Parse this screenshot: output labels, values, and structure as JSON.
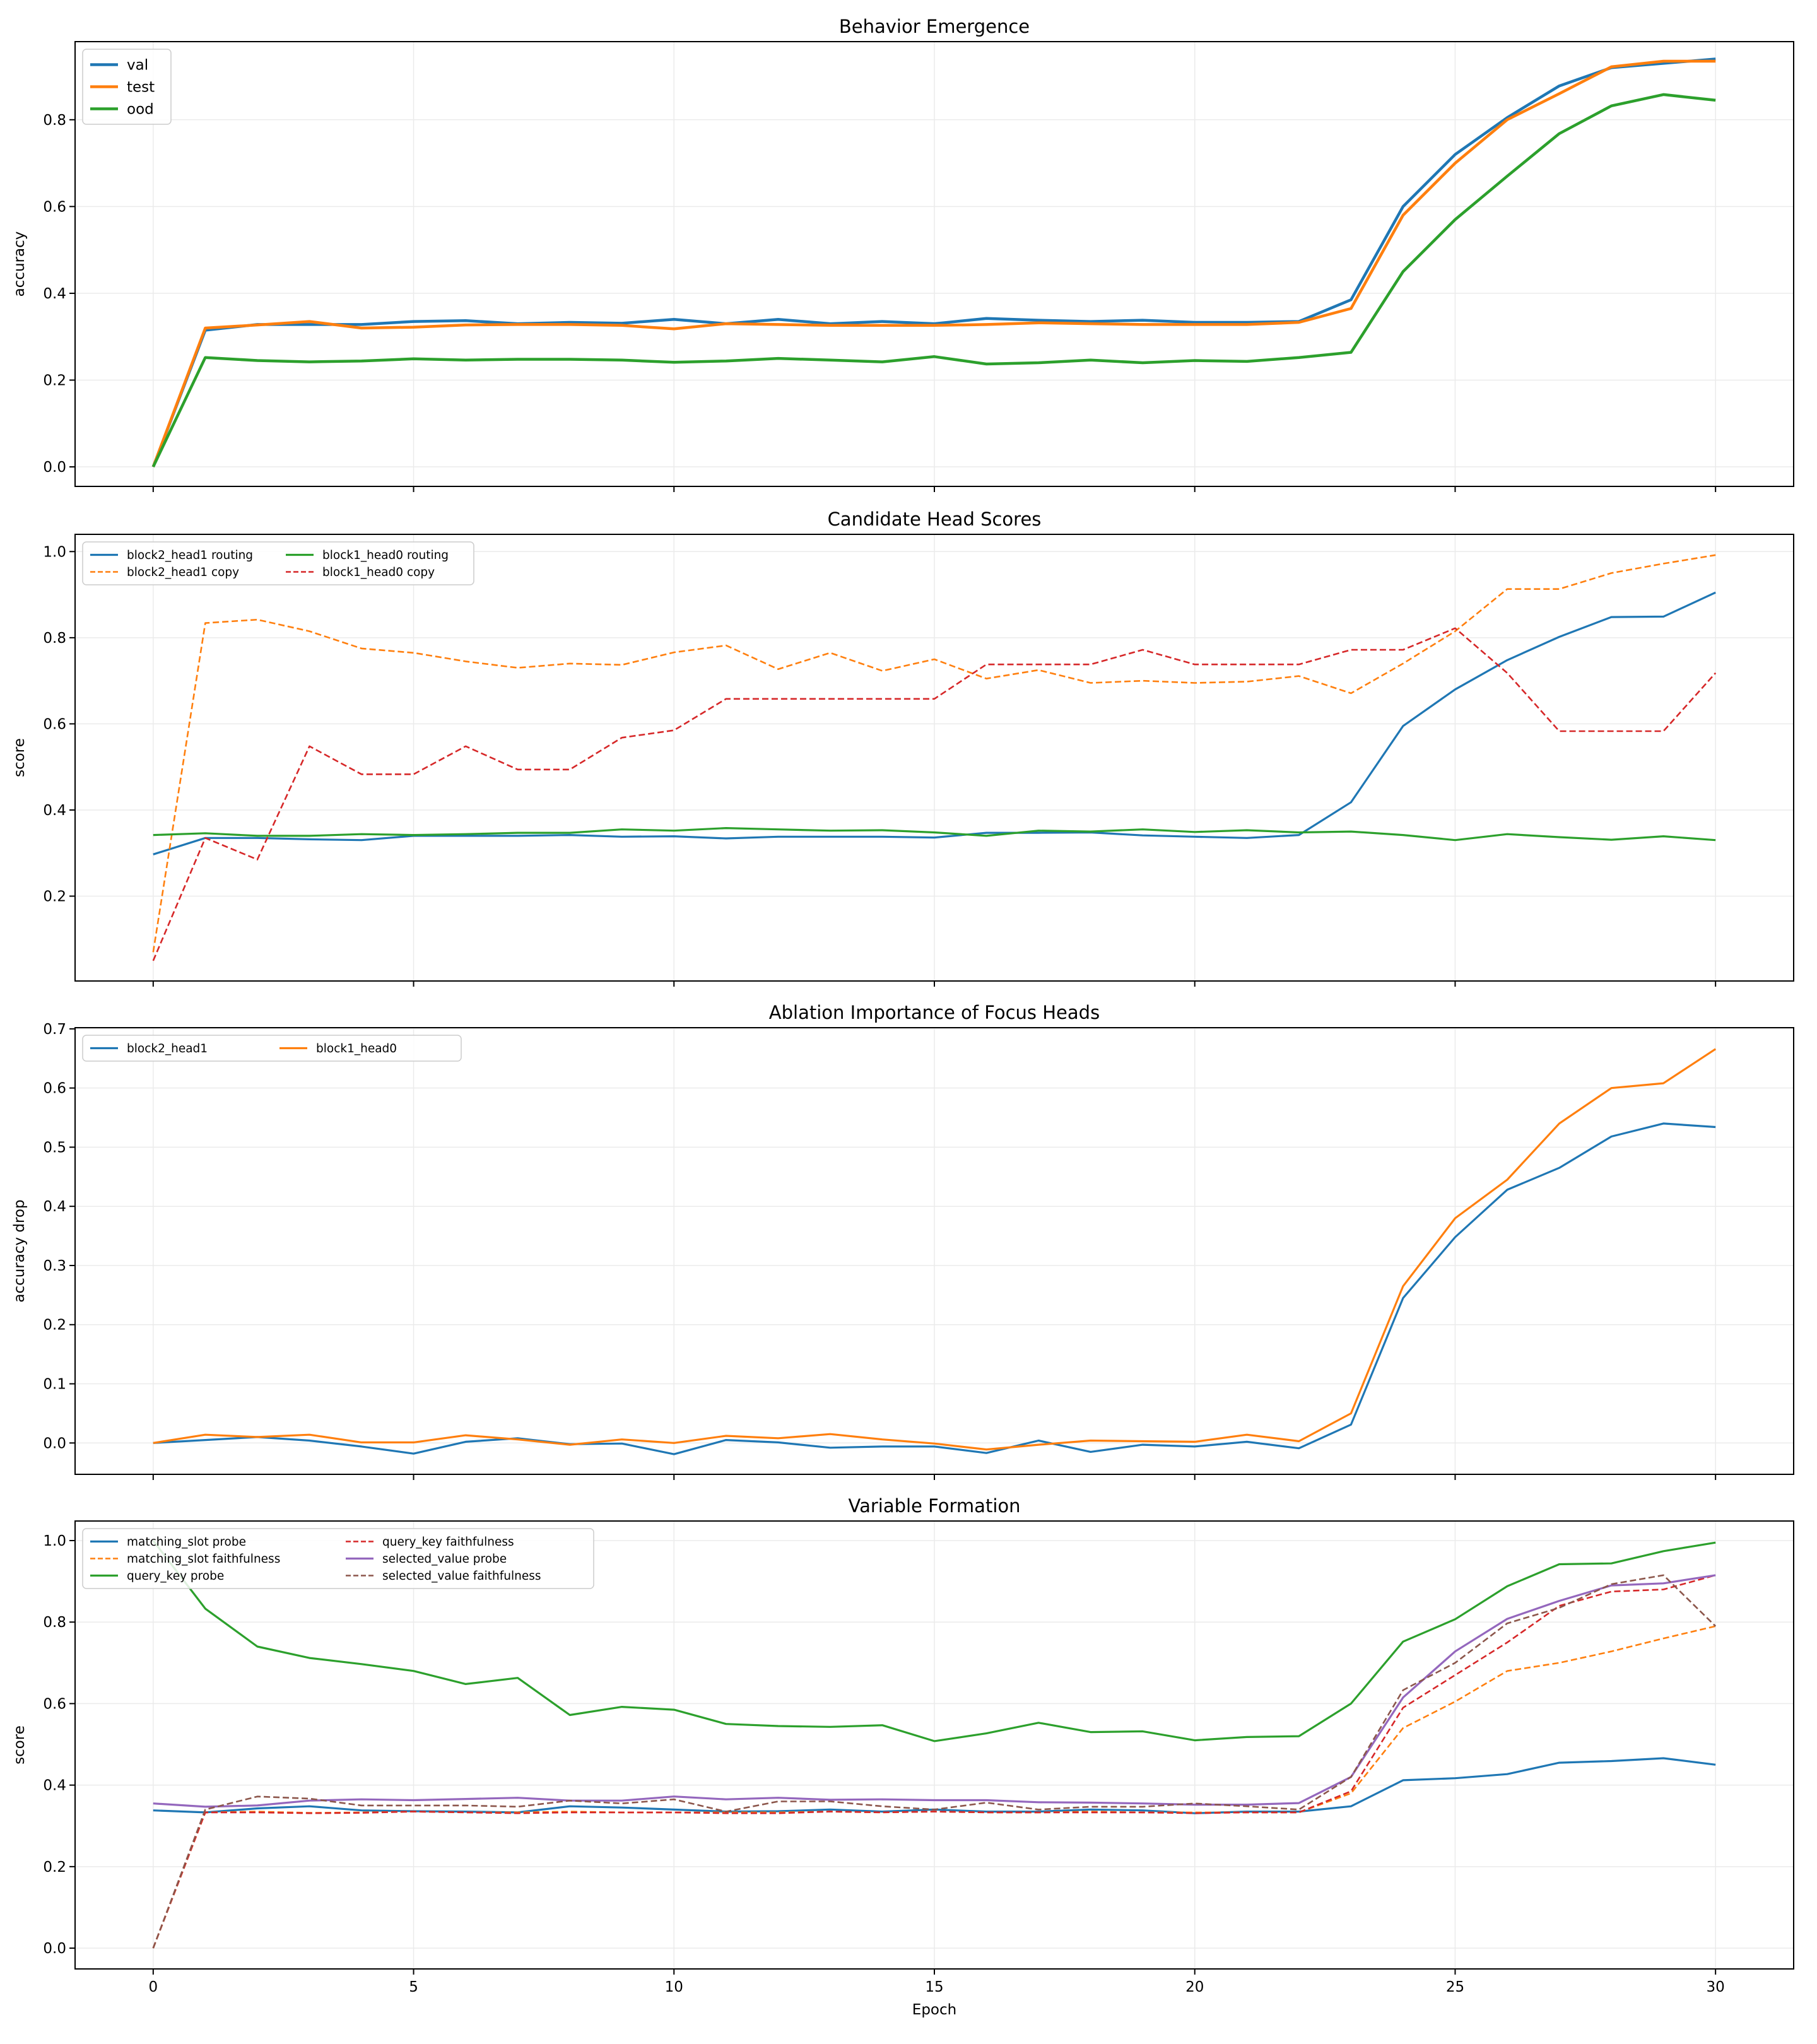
{
  "colors": {
    "blue": "#1f77b4",
    "orange": "#ff7f0e",
    "green": "#2ca02c",
    "red": "#d62728",
    "purple": "#9467bd",
    "brown": "#8c564b"
  },
  "xlabel": "Epoch",
  "chart_data": [
    {
      "type": "line",
      "title": "Behavior Emergence",
      "ylabel": "accuracy",
      "xlim": [
        -1.5,
        31.5
      ],
      "ylim": [
        -0.045,
        0.98
      ],
      "xticks": [
        0,
        5,
        10,
        15,
        20,
        25,
        30
      ],
      "yticks": [
        0.0,
        0.2,
        0.4,
        0.6,
        0.8
      ],
      "ytick_labels": [
        "0.0",
        "0.2",
        "0.4",
        "0.6",
        "0.8"
      ],
      "legend": {
        "placement": "top-left",
        "ncol": 1
      },
      "x": [
        0,
        1,
        2,
        3,
        4,
        5,
        6,
        7,
        8,
        9,
        10,
        11,
        12,
        13,
        14,
        15,
        16,
        17,
        18,
        19,
        20,
        21,
        22,
        23,
        24,
        25,
        26,
        27,
        28,
        29,
        30
      ],
      "series": [
        {
          "name": "val",
          "color": "#1f77b4",
          "linestyle": "solid",
          "values": [
            0,
            0.315,
            0.328,
            0.328,
            0.328,
            0.335,
            0.337,
            0.33,
            0.333,
            0.331,
            0.34,
            0.33,
            0.34,
            0.33,
            0.335,
            0.33,
            0.342,
            0.338,
            0.335,
            0.338,
            0.333,
            0.333,
            0.335,
            0.385,
            0.6,
            0.72,
            0.805,
            0.878,
            0.92,
            0.93,
            0.94
          ]
        },
        {
          "name": "test",
          "color": "#ff7f0e",
          "linestyle": "solid",
          "values": [
            0,
            0.32,
            0.327,
            0.335,
            0.32,
            0.322,
            0.327,
            0.328,
            0.328,
            0.326,
            0.318,
            0.33,
            0.328,
            0.326,
            0.326,
            0.326,
            0.328,
            0.332,
            0.33,
            0.328,
            0.328,
            0.328,
            0.333,
            0.365,
            0.58,
            0.7,
            0.8,
            0.86,
            0.922,
            0.935,
            0.935
          ]
        },
        {
          "name": "ood",
          "color": "#2ca02c",
          "linestyle": "solid",
          "values": [
            0,
            0.252,
            0.245,
            0.242,
            0.244,
            0.249,
            0.246,
            0.248,
            0.248,
            0.246,
            0.241,
            0.244,
            0.25,
            0.246,
            0.242,
            0.254,
            0.237,
            0.24,
            0.246,
            0.24,
            0.245,
            0.243,
            0.252,
            0.264,
            0.45,
            0.57,
            0.67,
            0.768,
            0.832,
            0.858,
            0.845
          ]
        }
      ]
    },
    {
      "type": "line",
      "title": "Candidate Head Scores",
      "ylabel": "score",
      "xlim": [
        -1.5,
        31.5
      ],
      "ylim": [
        0.003,
        1.04
      ],
      "xticks": [
        0,
        5,
        10,
        15,
        20,
        25,
        30
      ],
      "yticks": [
        0.2,
        0.4,
        0.6,
        0.8,
        1.0
      ],
      "ytick_labels": [
        "0.2",
        "0.4",
        "0.6",
        "0.8",
        "1.0"
      ],
      "legend": {
        "placement": "top-left",
        "ncol": 2
      },
      "x": [
        0,
        1,
        2,
        3,
        4,
        5,
        6,
        7,
        8,
        9,
        10,
        11,
        12,
        13,
        14,
        15,
        16,
        17,
        18,
        19,
        20,
        21,
        22,
        23,
        24,
        25,
        26,
        27,
        28,
        29,
        30
      ],
      "series": [
        {
          "name": "block2_head1 routing",
          "color": "#1f77b4",
          "linestyle": "solid",
          "values": [
            0.297,
            0.335,
            0.335,
            0.332,
            0.33,
            0.34,
            0.34,
            0.34,
            0.342,
            0.338,
            0.339,
            0.334,
            0.338,
            0.338,
            0.338,
            0.336,
            0.347,
            0.347,
            0.348,
            0.341,
            0.338,
            0.335,
            0.342,
            0.418,
            0.595,
            0.68,
            0.748,
            0.802,
            0.848,
            0.849,
            0.905
          ]
        },
        {
          "name": "block2_head1 copy",
          "color": "#ff7f0e",
          "linestyle": "dashed",
          "values": [
            0.07,
            0.834,
            0.842,
            0.815,
            0.775,
            0.765,
            0.745,
            0.73,
            0.74,
            0.737,
            0.766,
            0.782,
            0.727,
            0.765,
            0.723,
            0.75,
            0.705,
            0.725,
            0.695,
            0.7,
            0.695,
            0.698,
            0.711,
            0.671,
            0.74,
            0.815,
            0.913,
            0.913,
            0.95,
            0.972,
            0.992
          ]
        },
        {
          "name": "block1_head0 routing",
          "color": "#2ca02c",
          "linestyle": "solid",
          "values": [
            0.342,
            0.346,
            0.34,
            0.34,
            0.344,
            0.342,
            0.344,
            0.347,
            0.347,
            0.355,
            0.352,
            0.358,
            0.355,
            0.352,
            0.353,
            0.348,
            0.34,
            0.352,
            0.35,
            0.355,
            0.349,
            0.353,
            0.348,
            0.35,
            0.342,
            0.33,
            0.344,
            0.337,
            0.331,
            0.339,
            0.33
          ]
        },
        {
          "name": "block1_head0 copy",
          "color": "#d62728",
          "linestyle": "dashed",
          "values": [
            0.05,
            0.335,
            0.285,
            0.548,
            0.483,
            0.483,
            0.548,
            0.494,
            0.494,
            0.568,
            0.585,
            0.658,
            0.658,
            0.658,
            0.658,
            0.658,
            0.738,
            0.738,
            0.738,
            0.772,
            0.738,
            0.738,
            0.738,
            0.772,
            0.772,
            0.822,
            0.718,
            0.583,
            0.583,
            0.583,
            0.718
          ]
        }
      ]
    },
    {
      "type": "line",
      "title": "Ablation Importance of Focus Heads",
      "ylabel": "accuracy drop",
      "xlim": [
        -1.5,
        31.5
      ],
      "ylim": [
        -0.053,
        0.702
      ],
      "xticks": [
        0,
        5,
        10,
        15,
        20,
        25,
        30
      ],
      "yticks": [
        0.0,
        0.1,
        0.2,
        0.3,
        0.4,
        0.5,
        0.6,
        0.7
      ],
      "ytick_labels": [
        "0.0",
        "0.1",
        "0.2",
        "0.3",
        "0.4",
        "0.5",
        "0.6",
        "0.7"
      ],
      "legend": {
        "placement": "top-left",
        "ncol": 2
      },
      "x": [
        0,
        1,
        2,
        3,
        4,
        5,
        6,
        7,
        8,
        9,
        10,
        11,
        12,
        13,
        14,
        15,
        16,
        17,
        18,
        19,
        20,
        21,
        22,
        23,
        24,
        25,
        26,
        27,
        28,
        29,
        30
      ],
      "series": [
        {
          "name": "block2_head1",
          "color": "#1f77b4",
          "linestyle": "solid",
          "values": [
            0,
            0.005,
            0.01,
            0.004,
            -0.006,
            -0.018,
            0.002,
            0.008,
            -0.002,
            -0.001,
            -0.019,
            0.005,
            0.001,
            -0.008,
            -0.006,
            -0.006,
            -0.017,
            0.004,
            -0.015,
            -0.003,
            -0.006,
            0.002,
            -0.009,
            0.031,
            0.245,
            0.348,
            0.428,
            0.465,
            0.518,
            0.54,
            0.534
          ]
        },
        {
          "name": "block1_head0",
          "color": "#ff7f0e",
          "linestyle": "solid",
          "values": [
            0,
            0.014,
            0.01,
            0.014,
            0.001,
            0.001,
            0.013,
            0.006,
            -0.003,
            0.006,
            0.0,
            0.012,
            0.008,
            0.015,
            0.006,
            -0.001,
            -0.011,
            -0.003,
            0.004,
            0.003,
            0.002,
            0.014,
            0.003,
            0.05,
            0.265,
            0.38,
            0.445,
            0.54,
            0.6,
            0.608,
            0.666
          ]
        }
      ]
    },
    {
      "type": "line",
      "title": "Variable Formation",
      "ylabel": "score",
      "xlabel": "Epoch",
      "xlim": [
        -1.5,
        31.5
      ],
      "ylim": [
        -0.051,
        1.048
      ],
      "xticks": [
        0,
        5,
        10,
        15,
        20,
        25,
        30
      ],
      "xtick_labels": [
        "0",
        "5",
        "10",
        "15",
        "20",
        "25",
        "30"
      ],
      "yticks": [
        0.0,
        0.2,
        0.4,
        0.6,
        0.8,
        1.0
      ],
      "ytick_labels": [
        "0.0",
        "0.2",
        "0.4",
        "0.6",
        "0.8",
        "1.0"
      ],
      "legend": {
        "placement": "top-left",
        "ncol": 2
      },
      "x": [
        0,
        1,
        2,
        3,
        4,
        5,
        6,
        7,
        8,
        9,
        10,
        11,
        12,
        13,
        14,
        15,
        16,
        17,
        18,
        19,
        20,
        21,
        22,
        23,
        24,
        25,
        26,
        27,
        28,
        29,
        30
      ],
      "series": [
        {
          "name": "matching_slot probe",
          "color": "#1f77b4",
          "linestyle": "solid",
          "values": [
            0.338,
            0.333,
            0.343,
            0.348,
            0.338,
            0.336,
            0.335,
            0.333,
            0.348,
            0.345,
            0.34,
            0.335,
            0.336,
            0.34,
            0.335,
            0.34,
            0.335,
            0.335,
            0.34,
            0.338,
            0.331,
            0.335,
            0.335,
            0.348,
            0.412,
            0.417,
            0.427,
            0.455,
            0.459,
            0.466,
            0.45
          ]
        },
        {
          "name": "matching_slot faithfulness",
          "color": "#ff7f0e",
          "linestyle": "dashed",
          "values": [
            0,
            0.333,
            0.335,
            0.332,
            0.333,
            0.335,
            0.333,
            0.333,
            0.335,
            0.333,
            0.333,
            0.333,
            0.333,
            0.335,
            0.333,
            0.335,
            0.333,
            0.333,
            0.335,
            0.333,
            0.333,
            0.333,
            0.333,
            0.38,
            0.54,
            0.605,
            0.68,
            0.7,
            0.728,
            0.76,
            0.79
          ]
        },
        {
          "name": "query_key probe",
          "color": "#2ca02c",
          "linestyle": "solid",
          "values": [
            1.0,
            0.833,
            0.74,
            0.712,
            0.697,
            0.68,
            0.648,
            0.663,
            0.572,
            0.592,
            0.585,
            0.55,
            0.545,
            0.543,
            0.547,
            0.508,
            0.527,
            0.553,
            0.53,
            0.532,
            0.51,
            0.518,
            0.52,
            0.6,
            0.752,
            0.807,
            0.888,
            0.942,
            0.944,
            0.974,
            0.995
          ]
        },
        {
          "name": "query_key faithfulness",
          "color": "#d62728",
          "linestyle": "dashed",
          "values": [
            0,
            0.333,
            0.333,
            0.331,
            0.332,
            0.335,
            0.333,
            0.331,
            0.333,
            0.333,
            0.333,
            0.331,
            0.331,
            0.335,
            0.333,
            0.335,
            0.333,
            0.333,
            0.333,
            0.333,
            0.331,
            0.333,
            0.333,
            0.385,
            0.59,
            0.67,
            0.75,
            0.84,
            0.875,
            0.88,
            0.915
          ]
        },
        {
          "name": "selected_value probe",
          "color": "#9467bd",
          "linestyle": "solid",
          "values": [
            0.355,
            0.347,
            0.35,
            0.362,
            0.365,
            0.363,
            0.366,
            0.369,
            0.362,
            0.362,
            0.372,
            0.365,
            0.369,
            0.364,
            0.365,
            0.363,
            0.363,
            0.358,
            0.357,
            0.355,
            0.352,
            0.352,
            0.356,
            0.42,
            0.615,
            0.728,
            0.808,
            0.852,
            0.89,
            0.895,
            0.915
          ]
        },
        {
          "name": "selected_value faithfulness",
          "color": "#8c564b",
          "linestyle": "dashed",
          "values": [
            0,
            0.34,
            0.372,
            0.367,
            0.35,
            0.35,
            0.35,
            0.347,
            0.362,
            0.355,
            0.365,
            0.335,
            0.36,
            0.36,
            0.348,
            0.34,
            0.357,
            0.34,
            0.347,
            0.347,
            0.355,
            0.348,
            0.34,
            0.42,
            0.633,
            0.7,
            0.797,
            0.835,
            0.893,
            0.915,
            0.79
          ]
        }
      ]
    }
  ]
}
